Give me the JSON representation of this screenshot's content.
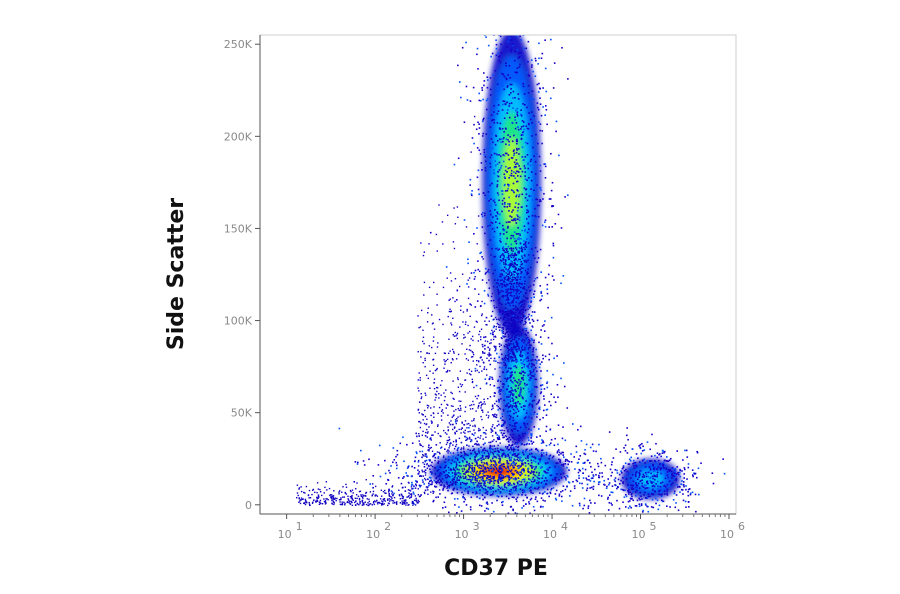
{
  "chart_data": {
    "type": "scatter",
    "title": "",
    "xlabel": "CD37 PE",
    "ylabel": "Side Scatter",
    "x_scale": "log",
    "xlim": [
      5,
      1200000
    ],
    "ylim": [
      -5000,
      255000
    ],
    "grid": false,
    "legend": "none",
    "colormap": "jet density (blue low → green → yellow → red high)",
    "x_ticks": [
      {
        "value": 10,
        "base": "10",
        "exp": "1"
      },
      {
        "value": 100,
        "base": "10",
        "exp": "2"
      },
      {
        "value": 1000,
        "base": "10",
        "exp": "3"
      },
      {
        "value": 10000,
        "base": "10",
        "exp": "4"
      },
      {
        "value": 100000,
        "base": "10",
        "exp": "5"
      },
      {
        "value": 1000000,
        "base": "10",
        "exp": "6"
      }
    ],
    "y_ticks": [
      {
        "value": 0,
        "label": "0"
      },
      {
        "value": 50000,
        "label": "50K"
      },
      {
        "value": 100000,
        "label": "100K"
      },
      {
        "value": 150000,
        "label": "150K"
      },
      {
        "value": 200000,
        "label": "200K"
      },
      {
        "value": 250000,
        "label": "250K"
      }
    ],
    "populations": [
      {
        "x_center": 3500,
        "y_center": 175000,
        "x_spread_decades": 0.15,
        "y_sd": 38000,
        "peak": "green-yellow"
      },
      {
        "x_center": 4200,
        "y_center": 65000,
        "x_spread_decades": 0.1,
        "y_sd": 15000,
        "peak": "green"
      },
      {
        "x_center": 2500,
        "y_center": 18000,
        "x_spread_decades": 0.35,
        "y_sd": 6000,
        "peak": "red"
      },
      {
        "x_center": 130000,
        "y_center": 14000,
        "x_spread_decades": 0.15,
        "y_sd": 5000,
        "peak": "cyan"
      }
    ],
    "colors": {
      "axis": "#555555",
      "tick_label": "#8a8a8a",
      "title": "#111111",
      "low_density": "#0000c8",
      "high_density": "#e60000"
    }
  }
}
